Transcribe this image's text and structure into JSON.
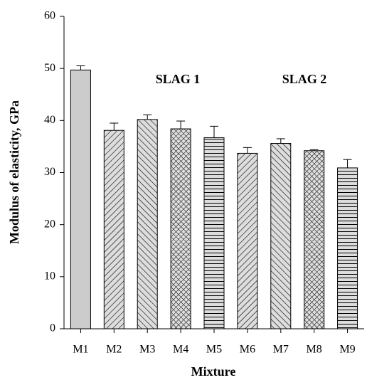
{
  "chart_data": {
    "type": "bar",
    "x_label": "Mixture",
    "y_label": "Modulus of elasticity, GPa",
    "categories": [
      "M1",
      "M2",
      "M3",
      "M4",
      "M5",
      "M6",
      "M7",
      "M8",
      "M9"
    ],
    "values": [
      49.7,
      38.1,
      40.2,
      38.4,
      36.7,
      33.7,
      35.6,
      34.2,
      30.9
    ],
    "errors": [
      0.8,
      1.4,
      0.9,
      1.5,
      2.2,
      1.1,
      0.9,
      0.2,
      1.6
    ],
    "patterns": [
      "solid",
      "forward",
      "backward",
      "cross",
      "horizontal",
      "forward",
      "backward",
      "cross",
      "horizontal"
    ],
    "color": "#cccccc",
    "annotations": [
      "SLAG 1",
      "SLAG 2"
    ],
    "ylim": [
      0,
      60
    ],
    "yticks": [
      0,
      10,
      20,
      30,
      40,
      50,
      60
    ]
  }
}
